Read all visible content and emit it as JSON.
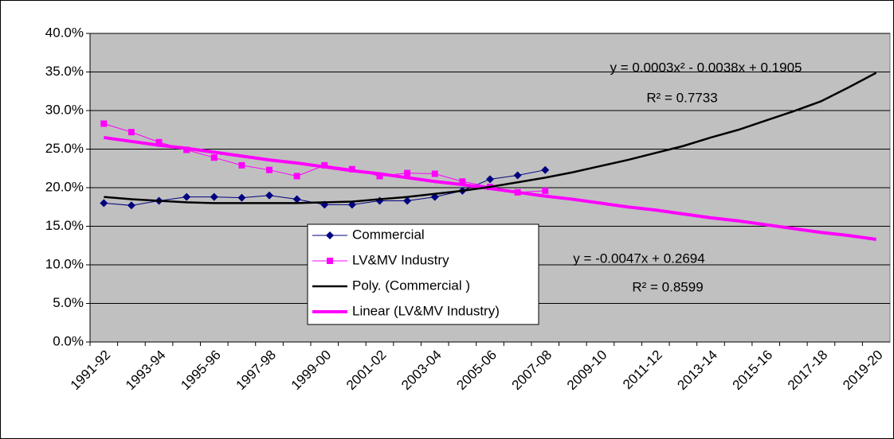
{
  "chart_data": {
    "type": "line",
    "categories": [
      "1991-92",
      null,
      "1993-94",
      null,
      "1995-96",
      null,
      "1997-98",
      null,
      "1999-00",
      null,
      "2001-02",
      null,
      "2003-04",
      null,
      "2005-06",
      null,
      "2007-08",
      null,
      "2009-10",
      null,
      "2011-12",
      null,
      "2013-14",
      null,
      "2015-16",
      null,
      "2017-18",
      null,
      "2019-20"
    ],
    "series": [
      {
        "name": "Commercial",
        "color": "#000080",
        "marker": "diamond",
        "width": 1,
        "values": [
          18.0,
          17.7,
          18.3,
          18.8,
          18.8,
          18.7,
          19.0,
          18.5,
          17.8,
          17.8,
          18.3,
          18.3,
          18.8,
          19.6,
          21.1,
          21.6,
          22.3,
          null,
          null,
          null,
          null,
          null,
          null,
          null,
          null,
          null,
          null,
          null,
          null
        ]
      },
      {
        "name": "LV&MV Industry",
        "color": "#ff00ff",
        "marker": "square",
        "width": 1,
        "values": [
          28.3,
          27.2,
          25.9,
          24.9,
          23.9,
          22.9,
          22.3,
          21.5,
          22.9,
          22.4,
          21.5,
          21.9,
          21.8,
          20.8,
          20.1,
          19.4,
          19.6,
          null,
          null,
          null,
          null,
          null,
          null,
          null,
          null,
          null,
          null,
          null,
          null
        ]
      },
      {
        "name": "Poly. (Commercial )",
        "color": "#000000",
        "marker": "none",
        "width": 2.5,
        "values": [
          18.8,
          18.5,
          18.3,
          18.1,
          18.0,
          18.0,
          18.0,
          18.0,
          18.1,
          18.2,
          18.5,
          18.8,
          19.2,
          19.6,
          20.1,
          20.7,
          21.3,
          22.0,
          22.8,
          23.6,
          24.5,
          25.4,
          26.5,
          27.5,
          28.7,
          29.9,
          31.2,
          33.0,
          34.9
        ]
      },
      {
        "name": "Linear (LV&MV Industry)",
        "color": "#ff00ff",
        "marker": "none",
        "width": 4,
        "values": [
          26.5,
          26.0,
          25.5,
          25.1,
          24.6,
          24.1,
          23.6,
          23.2,
          22.7,
          22.2,
          21.8,
          21.3,
          20.8,
          20.4,
          19.9,
          19.4,
          18.9,
          18.5,
          18.0,
          17.5,
          17.1,
          16.6,
          16.1,
          15.7,
          15.2,
          14.7,
          14.2,
          13.8,
          13.3
        ]
      }
    ],
    "annotations": [
      "y = 0.0003x² - 0.0038x + 0.1905",
      "R² = 0.7733",
      "y = -0.0047x + 0.2694",
      "R² = 0.8599"
    ],
    "ylim": [
      0,
      40
    ],
    "yticks": [
      {
        "value": 0,
        "label": "0.0%"
      },
      {
        "value": 5,
        "label": "5.0%"
      },
      {
        "value": 10,
        "label": "10.0%"
      },
      {
        "value": 15,
        "label": "15.0%"
      },
      {
        "value": 20,
        "label": "20.0%"
      },
      {
        "value": 25,
        "label": "25.0%"
      },
      {
        "value": 30,
        "label": "30.0%"
      },
      {
        "value": 35,
        "label": "35.0%"
      },
      {
        "value": 40,
        "label": "40.0%"
      }
    ],
    "grid": true,
    "legend": "center"
  }
}
